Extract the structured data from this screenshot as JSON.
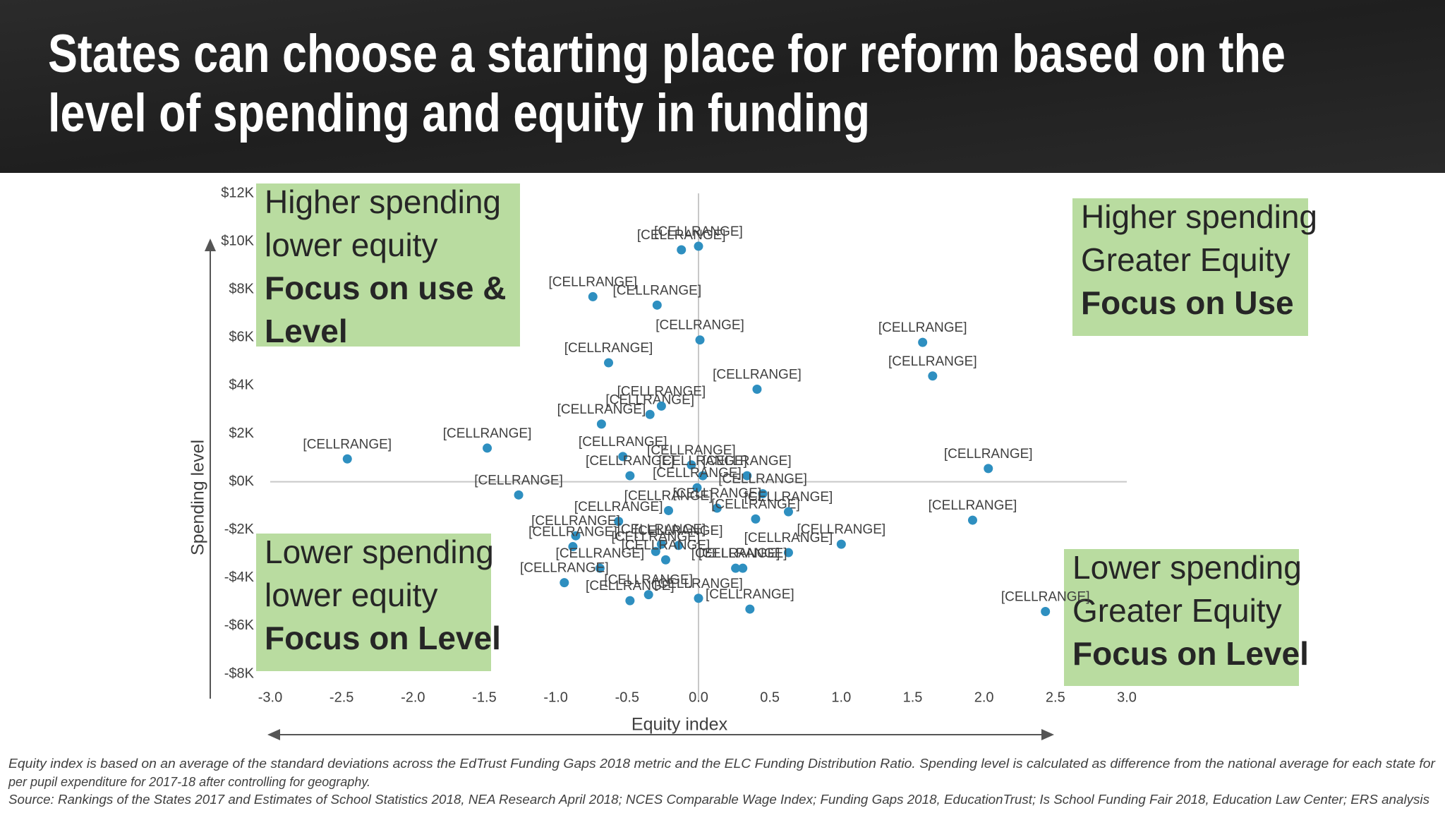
{
  "chart_data": {
    "type": "scatter",
    "title": [
      "States can choose a starting place for reform based on the",
      "level of spending and equity in funding"
    ],
    "x_label": "Equity index",
    "y_label": "Spending level",
    "x": [
      -0.12,
      0.0,
      -0.74,
      -0.29,
      -0.63,
      0.01,
      0.41,
      -0.68,
      -0.34,
      -0.26,
      -1.48,
      -2.46,
      -1.26,
      -0.53,
      -0.48,
      -0.05,
      0.03,
      0.34,
      -0.01,
      0.45,
      -0.21,
      0.13,
      0.4,
      0.63,
      -0.56,
      -0.86,
      -0.88,
      -0.26,
      -0.14,
      -0.3,
      -0.23,
      0.63,
      1.0,
      -0.69,
      -0.94,
      0.26,
      0.31,
      -0.35,
      -0.48,
      0.0,
      0.36,
      1.57,
      1.64,
      2.03,
      1.92,
      2.43
    ],
    "values": [
      9.65,
      9.8,
      7.7,
      7.35,
      4.95,
      5.9,
      3.85,
      2.4,
      2.8,
      3.15,
      1.4,
      0.95,
      -0.55,
      1.05,
      0.25,
      0.7,
      0.25,
      0.25,
      -0.25,
      -0.5,
      -1.2,
      -1.1,
      -1.55,
      -1.25,
      -1.65,
      -2.25,
      -2.7,
      -2.6,
      -2.65,
      -2.9,
      -3.25,
      -2.95,
      -2.6,
      -3.6,
      -4.2,
      -3.6,
      -3.6,
      -4.7,
      -4.95,
      -4.85,
      -5.3,
      5.8,
      4.4,
      0.55,
      -1.6,
      -5.4
    ],
    "labels": [
      "[CELLRANGE]",
      "[CELLRANGE]",
      "[CELLRANGE]",
      "[CELLRANGE]",
      "[CELLRANGE]",
      "[CELLRANGE]",
      "[CELLRANGE]",
      "[CELLRANGE]",
      "[CELLRANGE]",
      "[CELLRANGE]",
      "[CELLRANGE]",
      "[CELLRANGE]",
      "[CELLRANGE]",
      "[CELLRANGE]",
      "[CELLRANGE]",
      "[CELLRANGE]",
      "[CELLRANGE]",
      "[CELLRANGE]",
      "[CELLRANGE]",
      "[CELLRANGE]",
      "[CELLRANGE]",
      "[CELLRANGE]",
      "[CELLRANGE]",
      "[CELLRANGE]",
      "[CELLRANGE]",
      "[CELLRANGE]",
      "[CELLRANGE]",
      "[CELLRANGE]",
      "[CELLRANGE]",
      "[CELLRANGE]",
      "[CELLRANGE]",
      "[CELLRANGE]",
      "[CELLRANGE]",
      "[CELLRANGE]",
      "[CELLRANGE]",
      "[CELLRANGE]",
      "[CELLRANGE]",
      "[CELLRANGE]",
      "[CELLRANGE]",
      "[CELLRANGE]",
      "[CELLRANGE]",
      "[CELLRANGE]",
      "[CELLRANGE]",
      "[CELLRANGE]",
      "[CELLRANGE]",
      "[CELLRANGE]"
    ],
    "color": "#2e8fc0",
    "xlim": [
      -3,
      3
    ],
    "xticks": [
      {
        "value": -3,
        "label": "-3.0"
      },
      -2.5,
      {
        "value": -2,
        "label": "-2.0"
      },
      -1.5,
      {
        "value": -1,
        "label": "-1.0"
      },
      -0.5,
      {
        "value": 0,
        "label": "0.0"
      },
      0.5,
      {
        "value": 1,
        "label": "1.0"
      },
      1.5,
      {
        "value": 2,
        "label": "2.0"
      },
      2.5,
      {
        "value": 3,
        "label": "3.0"
      }
    ],
    "ylim": [
      -8,
      12
    ],
    "yticks": [
      {
        "value": -8,
        "label": "-$8K"
      },
      {
        "value": -6,
        "label": "-$6K"
      },
      {
        "value": -4,
        "label": "-$4K"
      },
      {
        "value": -2,
        "label": "-$2K"
      },
      {
        "value": 0,
        "label": "$0K"
      },
      {
        "value": 2,
        "label": "$2K"
      },
      {
        "value": 4,
        "label": "$4K"
      },
      {
        "value": 6,
        "label": "$6K"
      },
      {
        "value": 8,
        "label": "$8K"
      },
      {
        "value": 10,
        "label": "$10K"
      },
      {
        "value": 12,
        "label": "$12K"
      }
    ],
    "annotations": [
      {
        "text": [
          "Higher spending",
          "lower equity"
        ],
        "focus": [
          "Focus on use &",
          "Level"
        ]
      },
      {
        "text": [
          "Higher spending",
          "Greater Equity"
        ],
        "focus": [
          "Focus on Use"
        ]
      },
      {
        "text": [
          "Lower spending",
          "lower equity"
        ],
        "focus": [
          "Focus on Level"
        ]
      },
      {
        "text": [
          "Lower spending",
          "Greater Equity"
        ],
        "focus": [
          "Focus on Level"
        ]
      }
    ],
    "notes": [
      "Equity index is based on an average of the standard deviations across the EdTrust Funding Gaps 2018 metric and the ELC Funding Distribution Ratio. Spending level is calculated as difference from the national average for each state for",
      "per pupil expenditure for 2017-18 after controlling for geography.",
      "Source: Rankings of the States 2017 and Estimates of School Statistics 2018, NEA Research April 2018; NCES Comparable Wage Index; Funding Gaps 2018, EducationTrust; Is School Funding Fair 2018, Education Law Center; ERS analysis"
    ]
  }
}
